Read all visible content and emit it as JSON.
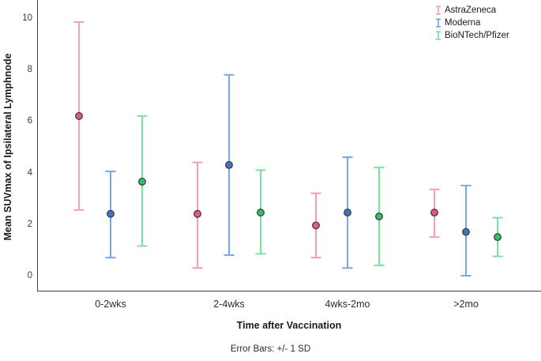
{
  "chart_data": {
    "type": "errorbar",
    "title": "",
    "xlabel": "Time after Vaccination",
    "ylabel": "Mean SUVmax of Ipsilateral Lymphnode",
    "footnote": "Error Bars: +/- 1 SD",
    "categories": [
      "0-2wks",
      "2-4wks",
      "4wks-2mo",
      ">2mo"
    ],
    "ylim": [
      0,
      10
    ],
    "yticks": [
      0,
      2,
      4,
      6,
      8,
      10
    ],
    "grid": false,
    "legend_position": "top-right",
    "axis_color": "#3f3f3f",
    "marker_outline_color": "#3d3d3d",
    "series": [
      {
        "name": "AstraZeneca",
        "line_color": "#f49ebe",
        "marker_color": "#e7578c",
        "mean": [
          6.2,
          2.4,
          1.95,
          2.45
        ],
        "lower": [
          2.55,
          0.3,
          0.7,
          1.5
        ],
        "upper": [
          9.85,
          4.4,
          3.2,
          3.35
        ]
      },
      {
        "name": "Moderna",
        "line_color": "#7aa5e9",
        "marker_color": "#3b76c5",
        "mean": [
          2.4,
          4.3,
          2.45,
          1.7
        ],
        "lower": [
          0.7,
          0.8,
          0.3,
          0.0
        ],
        "upper": [
          4.05,
          7.8,
          4.6,
          3.5
        ]
      },
      {
        "name": "BioNTech/Pfizer",
        "line_color": "#7be3a0",
        "marker_color": "#2ec463",
        "mean": [
          3.65,
          2.45,
          2.3,
          1.5
        ],
        "lower": [
          1.15,
          0.85,
          0.4,
          0.75
        ],
        "upper": [
          6.2,
          4.1,
          4.2,
          2.25
        ]
      }
    ]
  }
}
